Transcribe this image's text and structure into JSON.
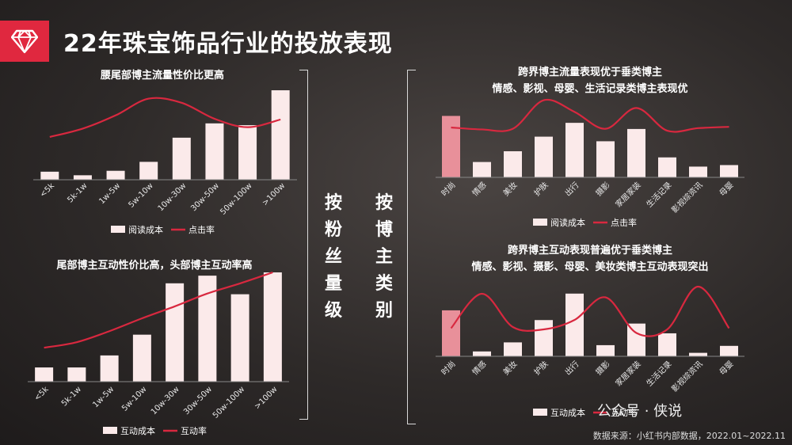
{
  "title": "22年珠宝饰品行业的投放表现",
  "group_left_label": [
    "按",
    "粉",
    "丝",
    "量",
    "级"
  ],
  "group_right_label": [
    "按",
    "博",
    "主",
    "类",
    "别"
  ],
  "source": "数据来源：小红书内部数据，2022.01~2022.11",
  "watermark": "公众号 · 侠说",
  "colors": {
    "accent": "#e0283f",
    "bar": "#fbeaea",
    "bar_highlight": "#e8909a",
    "line": "#d8283f"
  },
  "chart_data": [
    {
      "id": "c1",
      "type": "bar+line",
      "title": [
        "腰尾部博主流量性价比更高"
      ],
      "categories": [
        "<5k",
        "5k-1w",
        "1w-5w",
        "5w-10w",
        "10w-30w",
        "30w-50w",
        "50w-100w",
        ">100w"
      ],
      "series": [
        {
          "name": "阅读成本",
          "type": "bar",
          "values": [
            0.09,
            0.05,
            0.1,
            0.2,
            0.47,
            0.63,
            0.61,
            1.0
          ]
        },
        {
          "name": "点击率",
          "type": "line",
          "values": [
            0.33,
            0.45,
            0.64,
            0.88,
            0.82,
            0.59,
            0.47,
            0.58
          ]
        }
      ],
      "ylim": [
        0,
        1
      ],
      "legend": "bottom",
      "grid": false
    },
    {
      "id": "c2",
      "type": "bar+line",
      "title": [
        "尾部博主互动性价比高，头部博主互动率高"
      ],
      "categories": [
        "<5k",
        "5k-1w",
        "1w-5w",
        "5w-10w",
        "10w-30w",
        "30w-50w",
        "50w-100w",
        ">100w"
      ],
      "series": [
        {
          "name": "互动成本",
          "type": "bar",
          "values": [
            0.13,
            0.13,
            0.24,
            0.43,
            0.9,
            0.97,
            0.8,
            1.0
          ]
        },
        {
          "name": "互动率",
          "type": "line",
          "values": [
            0.18,
            0.24,
            0.36,
            0.5,
            0.63,
            0.77,
            0.88,
            1.0
          ]
        }
      ],
      "ylim": [
        0,
        1
      ],
      "legend": "bottom",
      "grid": false
    },
    {
      "id": "c3",
      "type": "bar+line",
      "title": [
        "跨界博主流量表现优于垂类博主",
        "情感、影视、母婴、生活记录类博主表现优"
      ],
      "categories": [
        "时尚",
        "情感",
        "美妆",
        "护肤",
        "出行",
        "摄影",
        "家居家装",
        "生活记录",
        "影视综资讯",
        "母婴"
      ],
      "highlight_index": 0,
      "series": [
        {
          "name": "阅读成本",
          "type": "bar",
          "values": [
            0.8,
            0.2,
            0.34,
            0.53,
            0.71,
            0.47,
            0.63,
            0.26,
            0.14,
            0.16
          ]
        },
        {
          "name": "点击率",
          "type": "line",
          "values": [
            0.5,
            0.47,
            0.48,
            0.92,
            0.74,
            0.48,
            0.8,
            0.45,
            0.49,
            0.51
          ]
        }
      ],
      "ylim": [
        0,
        1
      ],
      "legend": "bottom",
      "grid": false
    },
    {
      "id": "c4",
      "type": "bar+line",
      "title": [
        "跨界博主互动表现普遍优于垂类博主",
        "情感、影视、摄影、母婴、美妆类博主互动表现突出"
      ],
      "categories": [
        "时尚",
        "情感",
        "美妆",
        "护肤",
        "出行",
        "摄影",
        "家居家装",
        "生活记录",
        "影视综资讯",
        "母婴"
      ],
      "highlight_index": 0,
      "series": [
        {
          "name": "互动成本",
          "type": "bar",
          "values": [
            0.66,
            0.07,
            0.2,
            0.52,
            0.9,
            0.16,
            0.47,
            0.33,
            0.05,
            0.15
          ]
        },
        {
          "name": "互动率",
          "type": "line",
          "values": [
            0.3,
            0.88,
            0.32,
            0.28,
            0.44,
            0.82,
            0.22,
            0.28,
            1.0,
            0.3
          ]
        }
      ],
      "ylim": [
        0,
        1
      ],
      "legend": "bottom",
      "grid": false
    }
  ]
}
